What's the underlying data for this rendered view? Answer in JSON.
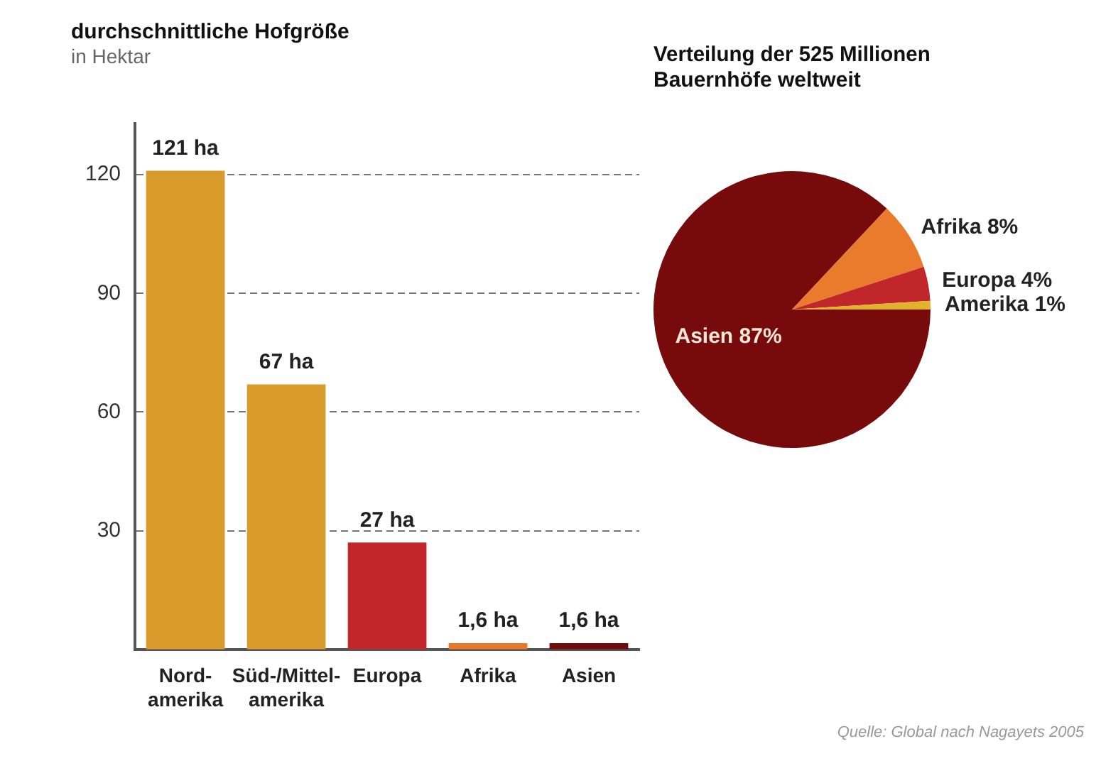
{
  "chart_data": [
    {
      "type": "bar",
      "title": "durchschnittliche Hofgröße",
      "subtitle": "in Hektar",
      "categories": [
        "Nord-\namerika",
        "Süd-/Mittel-\namerika",
        "Europa",
        "Afrika",
        "Asien"
      ],
      "values": [
        121,
        67,
        27,
        1.6,
        1.6
      ],
      "colors": [
        "#d99b2b",
        "#d99b2b",
        "#c3262a",
        "#e8782a",
        "#6e0b0b"
      ],
      "value_labels": [
        "121 ha",
        "67 ha",
        "27 ha",
        "1,6 ha",
        "1,6 ha"
      ],
      "ylim": [
        0,
        133
      ],
      "yticks": [
        30,
        60,
        90,
        120
      ],
      "grid": "y"
    },
    {
      "type": "pie",
      "title": "Verteilung der 525 Millionen\nBauernhöfe weltweit",
      "categories": [
        "Asien",
        "Afrika",
        "Europa",
        "Amerika"
      ],
      "values": [
        87,
        8,
        4,
        1
      ],
      "colors": [
        "#770b0b",
        "#ea7a2c",
        "#c0262a",
        "#e2b22e"
      ],
      "value_labels": [
        "87%",
        "8%",
        "4%",
        "1%"
      ],
      "annotations": [
        "Quelle: Global nach Nagayets 2005"
      ]
    }
  ]
}
